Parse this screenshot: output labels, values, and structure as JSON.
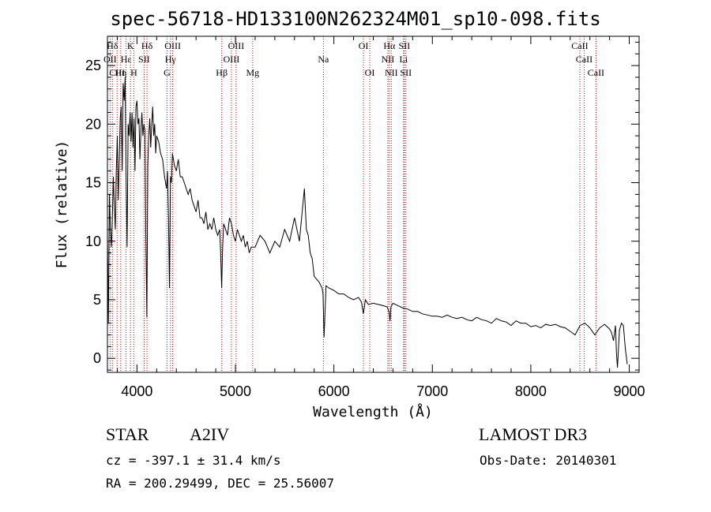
{
  "chart_data": {
    "type": "line",
    "title": "spec-56718-HD133100N262324M01_sp10-098.fits",
    "xlabel": "Wavelength (Å)",
    "ylabel": "Flux (relative)",
    "xlim": [
      3700,
      9100
    ],
    "ylim": [
      -1.2,
      27.5
    ],
    "xticks": [
      4000,
      5000,
      6000,
      7000,
      8000,
      9000
    ],
    "yticks": [
      0,
      5,
      10,
      15,
      20,
      25
    ],
    "grid": false,
    "series": [
      {
        "name": "spectrum",
        "x": [
          3700,
          3710,
          3720,
          3730,
          3740,
          3750,
          3760,
          3770,
          3780,
          3790,
          3800,
          3810,
          3820,
          3830,
          3840,
          3850,
          3860,
          3870,
          3880,
          3890,
          3900,
          3910,
          3920,
          3930,
          3940,
          3950,
          3960,
          3970,
          3980,
          3990,
          4000,
          4010,
          4020,
          4030,
          4040,
          4050,
          4060,
          4070,
          4080,
          4090,
          4100,
          4110,
          4120,
          4130,
          4140,
          4150,
          4160,
          4170,
          4180,
          4190,
          4200,
          4220,
          4240,
          4260,
          4280,
          4300,
          4310,
          4320,
          4330,
          4340,
          4350,
          4360,
          4380,
          4400,
          4420,
          4440,
          4460,
          4480,
          4500,
          4520,
          4540,
          4560,
          4580,
          4600,
          4620,
          4640,
          4660,
          4680,
          4700,
          4720,
          4740,
          4760,
          4780,
          4800,
          4820,
          4840,
          4850,
          4860,
          4870,
          4880,
          4900,
          4920,
          4940,
          4960,
          4980,
          5000,
          5020,
          5040,
          5060,
          5080,
          5100,
          5120,
          5140,
          5160,
          5180,
          5200,
          5250,
          5300,
          5350,
          5400,
          5450,
          5500,
          5550,
          5600,
          5650,
          5700,
          5720,
          5740,
          5760,
          5780,
          5800,
          5850,
          5880,
          5890,
          5900,
          5920,
          5950,
          6000,
          6050,
          6100,
          6150,
          6200,
          6250,
          6280,
          6300,
          6320,
          6350,
          6400,
          6450,
          6500,
          6540,
          6560,
          6570,
          6580,
          6600,
          6650,
          6700,
          6750,
          6800,
          6850,
          6900,
          6950,
          7000,
          7050,
          7100,
          7150,
          7200,
          7250,
          7300,
          7350,
          7400,
          7450,
          7500,
          7550,
          7600,
          7650,
          7700,
          7750,
          7800,
          7850,
          7900,
          7950,
          8000,
          8050,
          8100,
          8150,
          8200,
          8250,
          8300,
          8350,
          8400,
          8450,
          8500,
          8550,
          8600,
          8650,
          8700,
          8750,
          8800,
          8820,
          8840,
          8860,
          8870,
          8880,
          8900,
          8920,
          8940,
          8960,
          8980
        ],
        "y": [
          10.5,
          3.0,
          14.0,
          11.0,
          9.5,
          12.0,
          15.5,
          13.0,
          11.0,
          16.0,
          19.0,
          13.5,
          17.0,
          20.5,
          21.5,
          16.0,
          23.5,
          22.0,
          24.0,
          15.0,
          9.5,
          20.0,
          19.0,
          21.0,
          18.5,
          21.0,
          18.0,
          20.5,
          16.0,
          21.5,
          22.0,
          20.0,
          20.5,
          17.0,
          19.5,
          21.0,
          19.0,
          20.0,
          19.5,
          10.5,
          3.5,
          16.5,
          19.0,
          20.5,
          18.0,
          20.0,
          21.5,
          19.0,
          20.0,
          17.5,
          19.0,
          18.5,
          17.5,
          17.0,
          15.5,
          14.5,
          16.0,
          12.0,
          6.0,
          15.5,
          15.0,
          17.5,
          16.5,
          16.0,
          17.0,
          15.5,
          15.5,
          15.0,
          14.5,
          14.0,
          14.5,
          13.5,
          13.0,
          12.5,
          13.5,
          12.0,
          12.0,
          11.5,
          12.5,
          11.0,
          11.5,
          11.0,
          12.0,
          11.0,
          10.5,
          11.0,
          9.0,
          6.0,
          9.5,
          11.5,
          11.0,
          10.5,
          12.0,
          11.5,
          10.5,
          10.0,
          11.0,
          10.5,
          10.0,
          10.5,
          9.5,
          10.0,
          9.0,
          9.5,
          9.5,
          9.5,
          10.5,
          10.0,
          9.0,
          10.0,
          9.5,
          11.0,
          10.0,
          12.0,
          10.0,
          14.5,
          11.0,
          10.5,
          9.0,
          8.5,
          7.0,
          6.5,
          6.0,
          5.5,
          1.8,
          6.2,
          6.0,
          5.8,
          5.5,
          5.5,
          5.2,
          5.0,
          5.2,
          4.8,
          3.8,
          5.0,
          4.6,
          4.7,
          4.6,
          4.5,
          4.4,
          4.0,
          3.2,
          4.4,
          4.7,
          4.5,
          4.3,
          4.2,
          4.0,
          4.0,
          3.8,
          3.7,
          3.6,
          3.6,
          3.5,
          3.7,
          3.5,
          3.4,
          3.5,
          3.3,
          3.2,
          3.5,
          3.3,
          3.2,
          3.0,
          3.4,
          3.2,
          3.1,
          2.8,
          3.2,
          3.0,
          3.0,
          2.7,
          2.8,
          2.6,
          2.9,
          2.8,
          2.9,
          2.7,
          2.6,
          2.3,
          2.0,
          2.8,
          3.0,
          2.6,
          2.0,
          2.6,
          2.9,
          2.5,
          2.2,
          1.5,
          2.8,
          0.5,
          -0.8,
          2.4,
          3.0,
          2.8,
          0.8,
          -0.5
        ]
      }
    ],
    "line_groups": [
      {
        "label": "Hδ",
        "row": 1,
        "lines": [
          3750
        ]
      },
      {
        "label": "K",
        "row": 1,
        "lines": [
          3934
        ]
      },
      {
        "label": "Hδ",
        "row": 1,
        "lines": [
          4102
        ]
      },
      {
        "label": "OIII",
        "row": 1,
        "lines": [
          4363
        ]
      },
      {
        "label": "OIII",
        "row": 1,
        "lines": [
          5007
        ]
      },
      {
        "label": "OI",
        "row": 1,
        "lines": [
          6300
        ]
      },
      {
        "label": "Hα",
        "row": 1,
        "lines": [
          6563
        ]
      },
      {
        "label": "SII",
        "row": 1,
        "lines": [
          6716
        ]
      },
      {
        "label": "CaII",
        "row": 1,
        "lines": [
          8498
        ]
      },
      {
        "label": "OII",
        "row": 2,
        "lines": [
          3727
        ]
      },
      {
        "label": "Hε",
        "row": 2,
        "lines": [
          3889
        ]
      },
      {
        "label": "SII",
        "row": 2,
        "lines": [
          4072
        ]
      },
      {
        "label": "Hγ",
        "row": 2,
        "lines": [
          4340
        ]
      },
      {
        "label": "OIII",
        "row": 2,
        "lines": [
          4959
        ]
      },
      {
        "label": "Na",
        "row": 2,
        "lines": [
          5893
        ]
      },
      {
        "label": "NII",
        "row": 2,
        "lines": [
          6548
        ]
      },
      {
        "label": "Li",
        "row": 2,
        "lines": [
          6708
        ]
      },
      {
        "label": "CaII",
        "row": 2,
        "lines": [
          8542
        ]
      },
      {
        "label": "CIII",
        "row": 3,
        "lines": [
          3798
        ]
      },
      {
        "label": "Hη",
        "row": 3,
        "lines": [
          3835
        ]
      },
      {
        "label": "H",
        "row": 3,
        "lines": [
          3968
        ]
      },
      {
        "label": "G",
        "row": 3,
        "lines": [
          4305
        ]
      },
      {
        "label": "Hβ",
        "row": 3,
        "lines": [
          4861
        ]
      },
      {
        "label": "Mg",
        "row": 3,
        "lines": [
          5175
        ]
      },
      {
        "label": "OI",
        "row": 3,
        "lines": [
          6364
        ]
      },
      {
        "label": "NII",
        "row": 3,
        "lines": [
          6583
        ]
      },
      {
        "label": "SII",
        "row": 3,
        "lines": [
          6731
        ]
      },
      {
        "label": "CaII",
        "row": 3,
        "lines": [
          8662
        ]
      }
    ]
  },
  "info": {
    "object_class": "STAR",
    "subclass": "A2IV",
    "survey": "LAMOST DR3",
    "redshift": "cz = -397.1 ± 31.4 km/s",
    "obs_date": "Obs-Date: 20140301",
    "coords": "RA = 200.29499, DEC =  25.56007"
  },
  "colors": {
    "spectrum": "#000000",
    "line_markers": "#cc0000",
    "axes": "#000000"
  }
}
